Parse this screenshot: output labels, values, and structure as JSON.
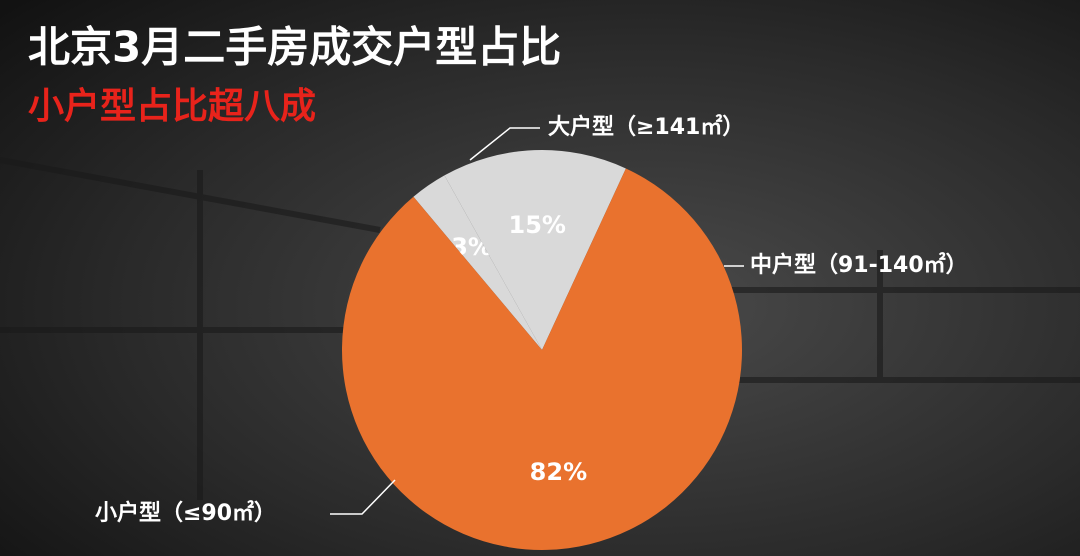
{
  "chart_data": {
    "type": "pie",
    "title": "北京3月二手房成交户型占比",
    "subtitle": "小户型占比超八成",
    "categories": [
      "大户型（≥141㎡）",
      "中户型（91-140㎡）",
      "小户型（≤90㎡）"
    ],
    "values": [
      3,
      15,
      82
    ],
    "value_labels": [
      "3%",
      "15%",
      "82%"
    ],
    "colors": [
      "#d9d9d9",
      "#d9d9d9",
      "#e9722e"
    ]
  }
}
